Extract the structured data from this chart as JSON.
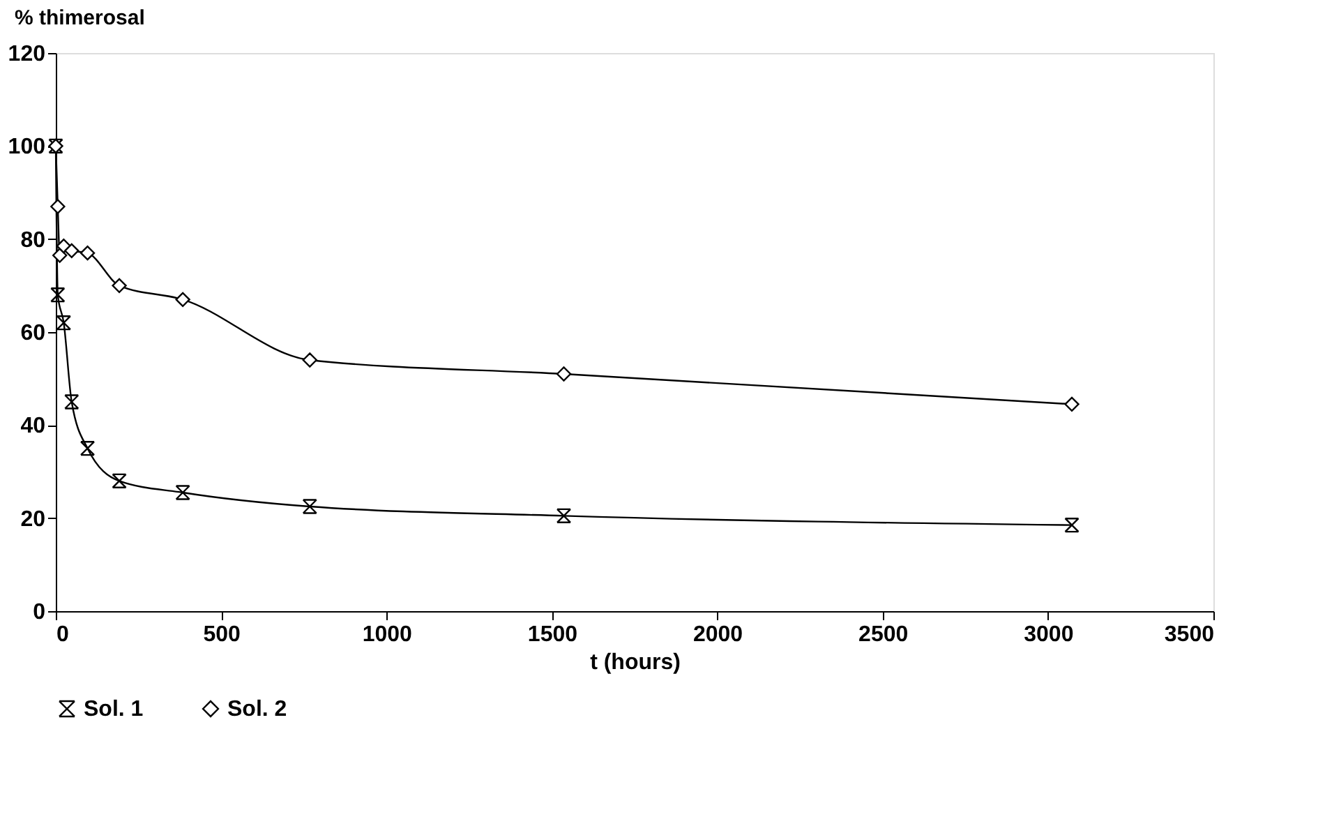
{
  "chart_data": {
    "type": "line",
    "xlabel": "t (hours)",
    "ylabel": "% thimerosal",
    "xlim": [
      0,
      3500
    ],
    "xticks": [
      0,
      500,
      1000,
      1500,
      2000,
      2500,
      3000,
      3500
    ],
    "ylim": [
      0,
      120
    ],
    "yticks": [
      0,
      20,
      40,
      60,
      80,
      100,
      120
    ],
    "grid": false,
    "legend": "bottom",
    "line_style": "solid",
    "series": [
      {
        "name": "Sol. 1",
        "color": "#000000",
        "marker": "cross",
        "x": [
          0,
          6,
          24,
          48,
          96,
          192,
          384,
          768,
          1536,
          3072
        ],
        "values": [
          100,
          68,
          62,
          45,
          35,
          28,
          25.5,
          22.5,
          20.5,
          18.5
        ]
      },
      {
        "name": "Sol. 2",
        "color": "#000000",
        "marker": "diamond",
        "x": [
          0,
          6,
          12,
          24,
          48,
          96,
          192,
          384,
          768,
          1536,
          3072
        ],
        "values": [
          100,
          87,
          76.5,
          78.5,
          77.5,
          77,
          70,
          67,
          54,
          51,
          44.5
        ]
      }
    ]
  }
}
